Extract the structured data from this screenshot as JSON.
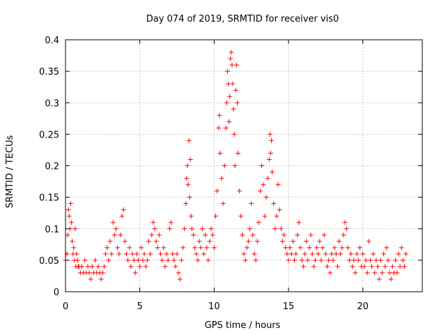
{
  "chart_data": {
    "type": "scatter",
    "title": "Day 074 of 2019, SRMTID for receiver vis0",
    "xlabel": "GPS time / hours",
    "ylabel": "SRMTID / TECUs",
    "xlim": [
      0,
      24
    ],
    "ylim": [
      0,
      0.4
    ],
    "xticks": [
      0,
      5,
      10,
      15,
      20
    ],
    "xtick_labels": [
      "0",
      "5",
      "10",
      "15",
      "20"
    ],
    "yticks": [
      0,
      0.05,
      0.1,
      0.15,
      0.2,
      0.25,
      0.3,
      0.35,
      0.4
    ],
    "ytick_labels": [
      "0",
      "0.05",
      "0.1",
      "0.15",
      "0.2",
      "0.25",
      "0.3",
      "0.35",
      "0.4"
    ],
    "grid": true,
    "marker": "plus",
    "series": [
      {
        "name": "SRMTID",
        "color": "#ff0000",
        "points": [
          [
            0.0,
            0.05
          ],
          [
            0.1,
            0.06
          ],
          [
            0.15,
            0.09
          ],
          [
            0.2,
            0.13
          ],
          [
            0.25,
            0.12
          ],
          [
            0.3,
            0.1
          ],
          [
            0.35,
            0.14
          ],
          [
            0.4,
            0.11
          ],
          [
            0.45,
            0.08
          ],
          [
            0.5,
            0.06
          ],
          [
            0.55,
            0.07
          ],
          [
            0.6,
            0.05
          ],
          [
            0.65,
            0.1
          ],
          [
            0.7,
            0.04
          ],
          [
            0.75,
            0.06
          ],
          [
            0.8,
            0.05
          ],
          [
            0.85,
            0.04
          ],
          [
            0.9,
            0.04
          ],
          [
            1.0,
            0.03
          ],
          [
            1.1,
            0.04
          ],
          [
            1.2,
            0.03
          ],
          [
            1.3,
            0.05
          ],
          [
            1.4,
            0.03
          ],
          [
            1.5,
            0.04
          ],
          [
            1.6,
            0.03
          ],
          [
            1.7,
            0.02
          ],
          [
            1.8,
            0.04
          ],
          [
            1.9,
            0.03
          ],
          [
            2.0,
            0.05
          ],
          [
            2.1,
            0.03
          ],
          [
            2.2,
            0.04
          ],
          [
            2.3,
            0.03
          ],
          [
            2.4,
            0.02
          ],
          [
            2.5,
            0.03
          ],
          [
            2.6,
            0.04
          ],
          [
            2.7,
            0.06
          ],
          [
            2.8,
            0.07
          ],
          [
            2.9,
            0.05
          ],
          [
            3.0,
            0.08
          ],
          [
            3.1,
            0.06
          ],
          [
            3.2,
            0.11
          ],
          [
            3.3,
            0.09
          ],
          [
            3.4,
            0.1
          ],
          [
            3.5,
            0.07
          ],
          [
            3.6,
            0.06
          ],
          [
            3.7,
            0.09
          ],
          [
            3.8,
            0.12
          ],
          [
            3.9,
            0.13
          ],
          [
            4.0,
            0.08
          ],
          [
            4.1,
            0.06
          ],
          [
            4.2,
            0.05
          ],
          [
            4.3,
            0.07
          ],
          [
            4.4,
            0.04
          ],
          [
            4.5,
            0.06
          ],
          [
            4.6,
            0.05
          ],
          [
            4.7,
            0.03
          ],
          [
            4.8,
            0.06
          ],
          [
            4.9,
            0.05
          ],
          [
            5.0,
            0.04
          ],
          [
            5.1,
            0.07
          ],
          [
            5.2,
            0.05
          ],
          [
            5.3,
            0.06
          ],
          [
            5.4,
            0.04
          ],
          [
            5.5,
            0.05
          ],
          [
            5.6,
            0.08
          ],
          [
            5.7,
            0.06
          ],
          [
            5.8,
            0.09
          ],
          [
            5.9,
            0.11
          ],
          [
            6.0,
            0.1
          ],
          [
            6.1,
            0.08
          ],
          [
            6.2,
            0.07
          ],
          [
            6.3,
            0.09
          ],
          [
            6.4,
            0.06
          ],
          [
            6.5,
            0.05
          ],
          [
            6.6,
            0.07
          ],
          [
            6.7,
            0.04
          ],
          [
            6.8,
            0.06
          ],
          [
            6.9,
            0.05
          ],
          [
            7.0,
            0.1
          ],
          [
            7.1,
            0.11
          ],
          [
            7.2,
            0.06
          ],
          [
            7.3,
            0.05
          ],
          [
            7.4,
            0.04
          ],
          [
            7.5,
            0.06
          ],
          [
            7.6,
            0.03
          ],
          [
            7.7,
            0.02
          ],
          [
            7.8,
            0.05
          ],
          [
            7.9,
            0.07
          ],
          [
            8.0,
            0.1
          ],
          [
            8.1,
            0.14
          ],
          [
            8.15,
            0.18
          ],
          [
            8.2,
            0.2
          ],
          [
            8.25,
            0.17
          ],
          [
            8.3,
            0.24
          ],
          [
            8.35,
            0.15
          ],
          [
            8.4,
            0.21
          ],
          [
            8.45,
            0.12
          ],
          [
            8.5,
            0.1
          ],
          [
            8.6,
            0.09
          ],
          [
            8.7,
            0.07
          ],
          [
            8.8,
            0.06
          ],
          [
            8.9,
            0.05
          ],
          [
            9.0,
            0.08
          ],
          [
            9.1,
            0.07
          ],
          [
            9.2,
            0.1
          ],
          [
            9.3,
            0.06
          ],
          [
            9.4,
            0.09
          ],
          [
            9.5,
            0.07
          ],
          [
            9.6,
            0.05
          ],
          [
            9.7,
            0.08
          ],
          [
            9.8,
            0.1
          ],
          [
            9.9,
            0.09
          ],
          [
            10.0,
            0.07
          ],
          [
            10.1,
            0.12
          ],
          [
            10.2,
            0.16
          ],
          [
            10.3,
            0.26
          ],
          [
            10.35,
            0.28
          ],
          [
            10.4,
            0.22
          ],
          [
            10.5,
            0.18
          ],
          [
            10.6,
            0.14
          ],
          [
            10.7,
            0.2
          ],
          [
            10.8,
            0.26
          ],
          [
            10.85,
            0.3
          ],
          [
            10.9,
            0.35
          ],
          [
            10.95,
            0.33
          ],
          [
            11.0,
            0.27
          ],
          [
            11.05,
            0.31
          ],
          [
            11.1,
            0.37
          ],
          [
            11.15,
            0.38
          ],
          [
            11.2,
            0.36
          ],
          [
            11.25,
            0.33
          ],
          [
            11.3,
            0.29
          ],
          [
            11.35,
            0.25
          ],
          [
            11.4,
            0.2
          ],
          [
            11.45,
            0.32
          ],
          [
            11.5,
            0.36
          ],
          [
            11.55,
            0.3
          ],
          [
            11.6,
            0.22
          ],
          [
            11.7,
            0.16
          ],
          [
            11.8,
            0.12
          ],
          [
            11.9,
            0.09
          ],
          [
            12.0,
            0.06
          ],
          [
            12.1,
            0.05
          ],
          [
            12.2,
            0.07
          ],
          [
            12.3,
            0.08
          ],
          [
            12.4,
            0.1
          ],
          [
            12.5,
            0.14
          ],
          [
            12.6,
            0.09
          ],
          [
            12.7,
            0.06
          ],
          [
            12.8,
            0.05
          ],
          [
            12.9,
            0.08
          ],
          [
            13.0,
            0.11
          ],
          [
            13.1,
            0.16
          ],
          [
            13.2,
            0.2
          ],
          [
            13.3,
            0.17
          ],
          [
            13.4,
            0.12
          ],
          [
            13.5,
            0.15
          ],
          [
            13.6,
            0.18
          ],
          [
            13.7,
            0.21
          ],
          [
            13.75,
            0.25
          ],
          [
            13.8,
            0.22
          ],
          [
            13.85,
            0.24
          ],
          [
            13.9,
            0.19
          ],
          [
            14.0,
            0.14
          ],
          [
            14.1,
            0.1
          ],
          [
            14.2,
            0.12
          ],
          [
            14.3,
            0.17
          ],
          [
            14.4,
            0.13
          ],
          [
            14.5,
            0.1
          ],
          [
            14.6,
            0.08
          ],
          [
            14.7,
            0.09
          ],
          [
            14.8,
            0.07
          ],
          [
            14.9,
            0.06
          ],
          [
            15.0,
            0.05
          ],
          [
            15.1,
            0.07
          ],
          [
            15.2,
            0.06
          ],
          [
            15.3,
            0.08
          ],
          [
            15.4,
            0.05
          ],
          [
            15.5,
            0.06
          ],
          [
            15.6,
            0.09
          ],
          [
            15.7,
            0.11
          ],
          [
            15.8,
            0.07
          ],
          [
            15.9,
            0.05
          ],
          [
            16.0,
            0.04
          ],
          [
            16.1,
            0.06
          ],
          [
            16.2,
            0.08
          ],
          [
            16.3,
            0.05
          ],
          [
            16.4,
            0.07
          ],
          [
            16.5,
            0.09
          ],
          [
            16.6,
            0.06
          ],
          [
            16.7,
            0.04
          ],
          [
            16.8,
            0.05
          ],
          [
            16.9,
            0.07
          ],
          [
            17.0,
            0.06
          ],
          [
            17.1,
            0.08
          ],
          [
            17.2,
            0.05
          ],
          [
            17.3,
            0.07
          ],
          [
            17.4,
            0.09
          ],
          [
            17.5,
            0.06
          ],
          [
            17.6,
            0.04
          ],
          [
            17.7,
            0.05
          ],
          [
            17.8,
            0.03
          ],
          [
            17.9,
            0.06
          ],
          [
            18.0,
            0.05
          ],
          [
            18.1,
            0.07
          ],
          [
            18.2,
            0.06
          ],
          [
            18.3,
            0.04
          ],
          [
            18.4,
            0.08
          ],
          [
            18.5,
            0.06
          ],
          [
            18.6,
            0.07
          ],
          [
            18.7,
            0.09
          ],
          [
            18.8,
            0.11
          ],
          [
            18.9,
            0.1
          ],
          [
            19.0,
            0.07
          ],
          [
            19.1,
            0.05
          ],
          [
            19.2,
            0.06
          ],
          [
            19.3,
            0.04
          ],
          [
            19.4,
            0.05
          ],
          [
            19.5,
            0.03
          ],
          [
            19.6,
            0.06
          ],
          [
            19.7,
            0.05
          ],
          [
            19.8,
            0.07
          ],
          [
            19.9,
            0.04
          ],
          [
            20.0,
            0.06
          ],
          [
            20.1,
            0.04
          ],
          [
            20.2,
            0.05
          ],
          [
            20.3,
            0.03
          ],
          [
            20.4,
            0.08
          ],
          [
            20.5,
            0.05
          ],
          [
            20.6,
            0.04
          ],
          [
            20.7,
            0.06
          ],
          [
            20.8,
            0.03
          ],
          [
            20.9,
            0.05
          ],
          [
            21.0,
            0.04
          ],
          [
            21.1,
            0.02
          ],
          [
            21.2,
            0.05
          ],
          [
            21.3,
            0.03
          ],
          [
            21.4,
            0.06
          ],
          [
            21.5,
            0.04
          ],
          [
            21.6,
            0.07
          ],
          [
            21.7,
            0.05
          ],
          [
            21.8,
            0.03
          ],
          [
            21.9,
            0.02
          ],
          [
            22.0,
            0.04
          ],
          [
            22.1,
            0.03
          ],
          [
            22.2,
            0.05
          ],
          [
            22.3,
            0.03
          ],
          [
            22.4,
            0.06
          ],
          [
            22.5,
            0.04
          ],
          [
            22.6,
            0.07
          ],
          [
            22.7,
            0.05
          ],
          [
            22.8,
            0.04
          ],
          [
            22.9,
            0.06
          ]
        ]
      }
    ]
  }
}
